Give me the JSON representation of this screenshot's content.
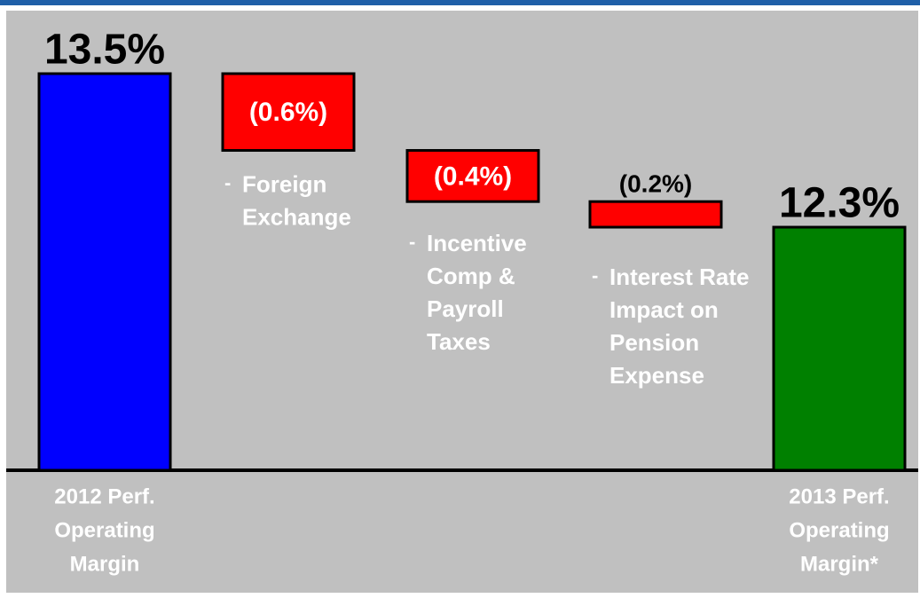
{
  "chart_data": {
    "type": "waterfall",
    "categories": [
      [
        "2012 Perf.",
        "Operating",
        "Margin"
      ],
      [
        "Foreign",
        "Exchange"
      ],
      [
        "Incentive",
        "Comp &",
        "Payroll",
        "Taxes"
      ],
      [
        "Interest Rate",
        "Impact on",
        "Pension",
        "Expense"
      ],
      [
        "2013 Perf.",
        "Operating",
        "Margin*"
      ]
    ],
    "bullet": "-",
    "measure": [
      "absolute",
      "relative",
      "relative",
      "relative",
      "absolute"
    ],
    "values": [
      13.5,
      -0.6,
      -0.4,
      -0.2,
      12.3
    ],
    "value_labels": [
      "13.5%",
      "(0.6%)",
      "(0.4%)",
      "(0.2%)",
      "12.3%"
    ],
    "colors": [
      "#0000ff",
      "#ff0000",
      "#ff0000",
      "#ff0000",
      "#008000"
    ],
    "ylim": [
      10.4,
      13.5
    ]
  }
}
